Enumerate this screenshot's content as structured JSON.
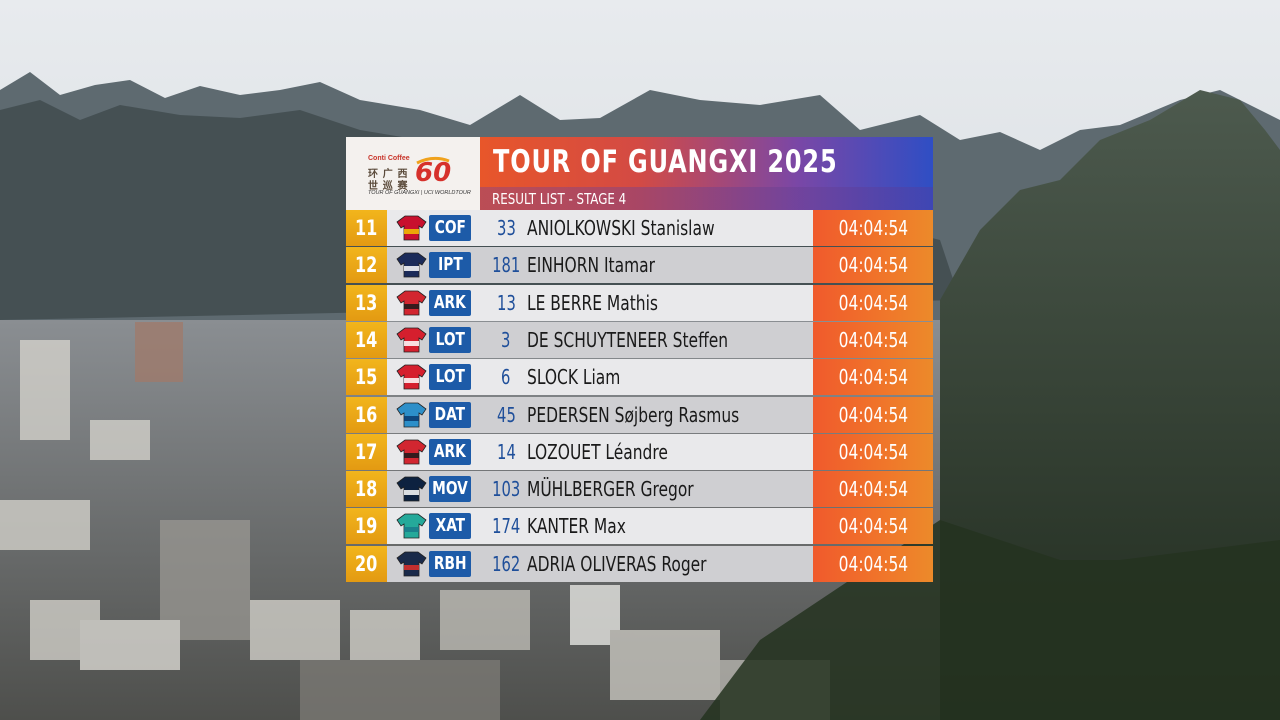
{
  "logo": {
    "sponsor": "Conti Coffee",
    "cn_line1": "环 广 西",
    "cn_line2": "世 巡 赛",
    "tagline": "TOUR OF GUANGXI | UCI WORLDTOUR",
    "number": "60"
  },
  "header": {
    "title": "TOUR OF GUANGXI 2025",
    "subtitle": "RESULT LIST - STAGE 4"
  },
  "colors": {
    "rank_bg": "#f2b51c",
    "team_badge": "#1d5ba8",
    "time_bg": "#f0762a",
    "bib_text": "#1f4f9a"
  },
  "results": [
    {
      "rank": "11",
      "team": "COF",
      "bib": "33",
      "name": "ANIOLKOWSKI Stanislaw",
      "time": "04:04:54",
      "jersey": "jersey-cofidis-icon"
    },
    {
      "rank": "12",
      "team": "IPT",
      "bib": "181",
      "name": "EINHORN Itamar",
      "time": "04:04:54",
      "jersey": "jersey-israel-premier-tech-icon"
    },
    {
      "rank": "13",
      "team": "ARK",
      "bib": "13",
      "name": "LE BERRE Mathis",
      "time": "04:04:54",
      "jersey": "jersey-arkea-icon"
    },
    {
      "rank": "14",
      "team": "LOT",
      "bib": "3",
      "name": "DE SCHUYTENEER Steffen",
      "time": "04:04:54",
      "jersey": "jersey-lotto-icon"
    },
    {
      "rank": "15",
      "team": "LOT",
      "bib": "6",
      "name": "SLOCK Liam",
      "time": "04:04:54",
      "jersey": "jersey-lotto-icon"
    },
    {
      "rank": "16",
      "team": "DAT",
      "bib": "45",
      "name": "PEDERSEN Søjberg Rasmus",
      "time": "04:04:54",
      "jersey": "jersey-decathlon-icon"
    },
    {
      "rank": "17",
      "team": "ARK",
      "bib": "14",
      "name": "LOZOUET Léandre",
      "time": "04:04:54",
      "jersey": "jersey-arkea-icon"
    },
    {
      "rank": "18",
      "team": "MOV",
      "bib": "103",
      "name": "MÜHLBERGER Gregor",
      "time": "04:04:54",
      "jersey": "jersey-movistar-icon"
    },
    {
      "rank": "19",
      "team": "XAT",
      "bib": "174",
      "name": "KANTER Max",
      "time": "04:04:54",
      "jersey": "jersey-xds-astana-icon"
    },
    {
      "rank": "20",
      "team": "RBH",
      "bib": "162",
      "name": "ADRIA OLIVERAS Roger",
      "time": "04:04:54",
      "jersey": "jersey-red-bull-bora-icon"
    }
  ]
}
